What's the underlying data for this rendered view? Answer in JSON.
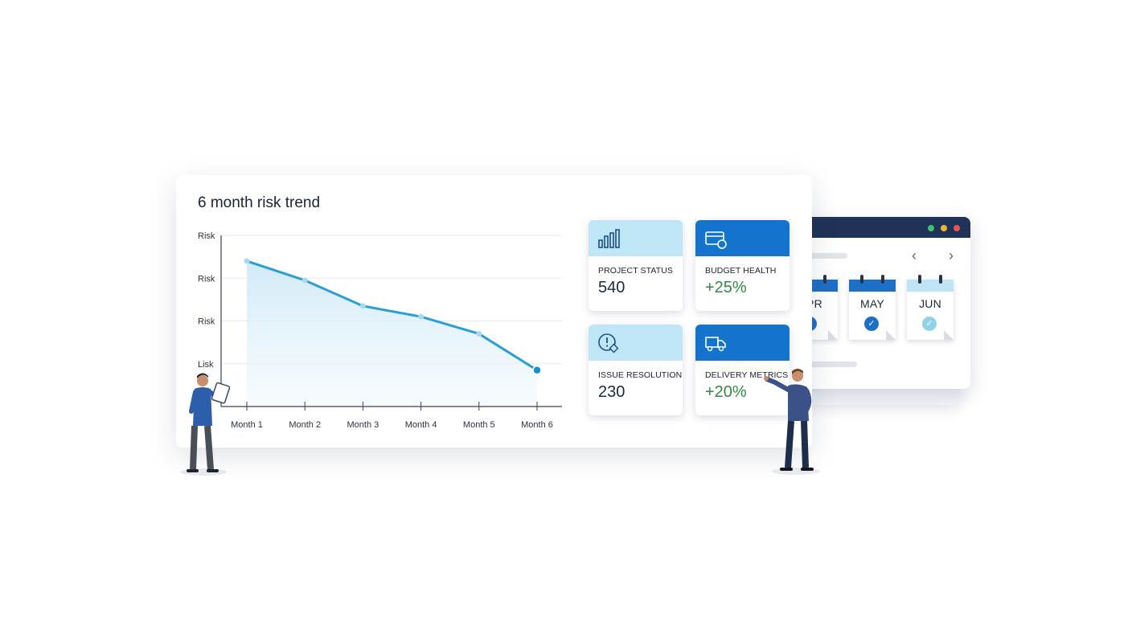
{
  "chart": {
    "title": "6 month risk trend"
  },
  "chart_data": {
    "type": "area",
    "title": "6 month risk trend",
    "categories": [
      "Month 1",
      "Month 2",
      "Month 3",
      "Month 4",
      "Month 5",
      "Month 6"
    ],
    "y_tick_labels": [
      "Risk",
      "Risk",
      "Risk",
      "Lisk"
    ],
    "values": [
      3.4,
      2.95,
      2.35,
      2.1,
      1.7,
      0.85
    ],
    "ylim": [
      0,
      4
    ],
    "grid": true,
    "legend": "none",
    "series": [
      {
        "values": [
          3.4,
          2.95,
          2.35,
          2.1,
          1.7,
          0.85
        ]
      }
    ],
    "colors": {
      "line": "#2a9fd6",
      "fill_top": "#cfe9f7",
      "marker_last": "#1a8fd0"
    }
  },
  "tiles": [
    {
      "label": "PROJECT STATUS",
      "value": "540",
      "icon": "bar-chart-icon",
      "tone": "light"
    },
    {
      "label": "BUDGET HEALTH",
      "value": "+25%",
      "icon": "wallet-icon",
      "tone": "dark"
    },
    {
      "label": "ISSUE RESOLUTION",
      "value": "230",
      "icon": "alert-clock-icon",
      "tone": "light"
    },
    {
      "label": "DELIVERY METRICS",
      "value": "+20%",
      "icon": "truck-icon",
      "tone": "dark"
    }
  ],
  "calendar": {
    "months": [
      {
        "label": "PR",
        "done": true
      },
      {
        "label": "MAY",
        "done": true
      },
      {
        "label": "JUN",
        "done": true
      }
    ],
    "nav_prev": "‹",
    "nav_next": "›"
  },
  "colors": {
    "accent_dark": "#1473cc",
    "accent_light": "#bfe6f6",
    "positive": "#2f8b45",
    "titlebar": "#1f3358"
  }
}
